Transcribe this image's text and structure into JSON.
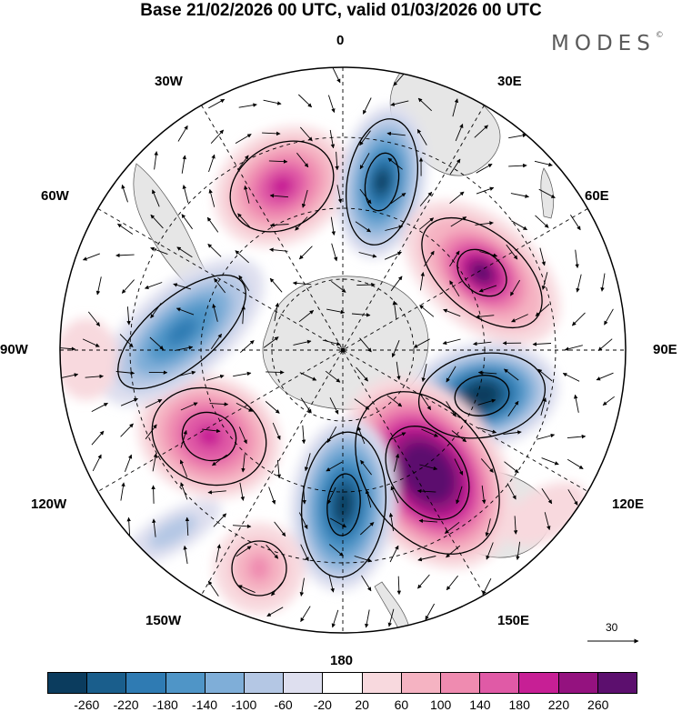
{
  "title": "Base 21/02/2026 00 UTC, valid 01/03/2026 00 UTC",
  "brand": {
    "name": "MODES",
    "mark": "©"
  },
  "longitude_labels": {
    "top": "0",
    "top_right": "30E",
    "right_upper": "60E",
    "right": "90E",
    "right_lower": "120E",
    "bottom_right": "150E",
    "bottom": "180",
    "bottom_left": "150W",
    "left_lower": "120W",
    "left": "90W",
    "left_upper": "60W",
    "top_left": "30W"
  },
  "reference_vector": {
    "value": "30"
  },
  "colors": {
    "ocean": "#ffffff",
    "land": "#e6e6e6",
    "outline": "#000000"
  },
  "colorbar": {
    "swatches": [
      "#0b3c5e",
      "#1a5e8c",
      "#2f7bb3",
      "#4f95c7",
      "#7faed8",
      "#b4c7e4",
      "#dedfef",
      "#ffffff",
      "#f8d9de",
      "#f5b3c2",
      "#ef8bb0",
      "#e05aa6",
      "#c71f95",
      "#94127f",
      "#5c0f6e"
    ],
    "ticks": [
      "-260",
      "-220",
      "-180",
      "-140",
      "-100",
      "-60",
      "-20",
      "20",
      "60",
      "100",
      "140",
      "180",
      "220",
      "260"
    ]
  },
  "anomaly_centers": [
    {
      "sign": "positive",
      "value": 200,
      "bearing_deg": -25
    },
    {
      "sign": "negative",
      "value": -220,
      "bearing_deg": 15
    },
    {
      "sign": "positive",
      "value": 240,
      "bearing_deg": 70
    },
    {
      "sign": "negative",
      "value": -240,
      "bearing_deg": 105
    },
    {
      "sign": "positive",
      "value": 260,
      "bearing_deg": 150
    },
    {
      "sign": "negative",
      "value": -240,
      "bearing_deg": 178
    },
    {
      "sign": "positive",
      "value": 180,
      "bearing_deg": 235
    },
    {
      "sign": "negative",
      "value": -140,
      "bearing_deg": 265
    }
  ]
}
